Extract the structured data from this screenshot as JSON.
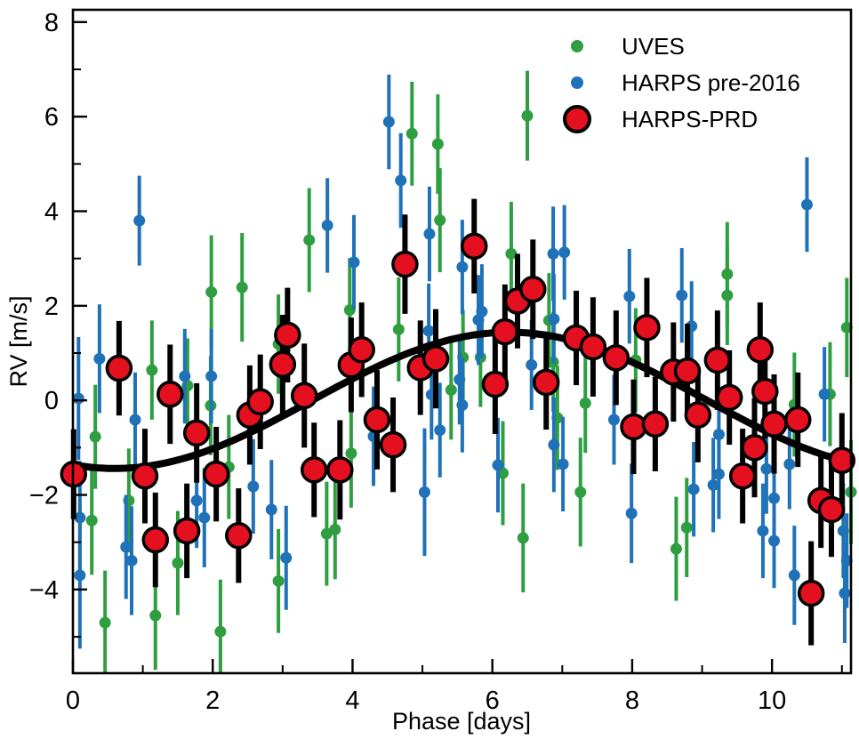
{
  "figure": {
    "background": "#ffffff",
    "frame_color": "#000000"
  },
  "chart_data": {
    "type": "scatter",
    "title": "",
    "xlabel": "Phase [days]",
    "ylabel": "RV [m/s]",
    "grid": false,
    "legend_position": "top-right",
    "axes": {
      "x": {
        "label": "Phase [days]",
        "range": [
          0,
          11.13
        ],
        "major_ticks": [
          0,
          2,
          4,
          6,
          8,
          10
        ],
        "major_tick_labels": [
          "0",
          "2",
          "4",
          "6",
          "8",
          "10"
        ],
        "minor_ticks": [
          1,
          3,
          5,
          7,
          9,
          11
        ],
        "ticks_direction": "in"
      },
      "y": {
        "label": "RV [m/s]",
        "range": [
          -5.77,
          8.26
        ],
        "major_ticks": [
          -4,
          -2,
          0,
          2,
          4,
          6,
          8
        ],
        "major_tick_labels": [
          "−4",
          "−2",
          "0",
          "2",
          "4",
          "6",
          "8"
        ],
        "minor_ticks": [
          -5,
          -3,
          -1,
          1,
          3,
          5,
          7
        ],
        "ticks_direction": "in"
      }
    },
    "model_curve": {
      "shape": "sine",
      "amplitude": 1.44,
      "period_days": 11.3,
      "rising_zero_crossing_phase": 3.42,
      "color": "#000000",
      "line_width": 8
    },
    "series": [
      {
        "name": "UVES",
        "color": "#2f9e41",
        "marker": "dot",
        "marker_radius": 6.5,
        "errorbar_color": "#2f9e41",
        "errorbar_width": 4,
        "points_format": [
          "phase_days",
          "rv_ms",
          "error_ms"
        ],
        "points": [
          [
            0.27,
            -2.54,
            1.15
          ],
          [
            0.32,
            -0.77,
            1.1
          ],
          [
            0.46,
            -4.7,
            1.1
          ],
          [
            0.8,
            -2.12,
            1.1
          ],
          [
            1.13,
            0.64,
            1.05
          ],
          [
            1.18,
            -4.55,
            1.15
          ],
          [
            1.5,
            -3.44,
            1.1
          ],
          [
            1.64,
            0.31,
            1.0
          ],
          [
            1.97,
            -0.11,
            1.05
          ],
          [
            1.98,
            2.29,
            1.2
          ],
          [
            2.11,
            -4.89,
            1.1
          ],
          [
            2.23,
            -1.41,
            1.1
          ],
          [
            2.42,
            2.39,
            1.15
          ],
          [
            2.94,
            -3.82,
            1.1
          ],
          [
            2.94,
            1.19,
            1.05
          ],
          [
            3.38,
            3.39,
            1.1
          ],
          [
            3.63,
            -2.82,
            1.1
          ],
          [
            3.75,
            -2.73,
            1.05
          ],
          [
            3.96,
            1.91,
            1.1
          ],
          [
            3.98,
            -1.12,
            1.15
          ],
          [
            4.66,
            1.5,
            1.1
          ],
          [
            4.85,
            5.64,
            1.1
          ],
          [
            5.22,
            5.42,
            1.05
          ],
          [
            5.25,
            3.81,
            1.1
          ],
          [
            5.41,
            0.22,
            1.05
          ],
          [
            5.58,
            0.91,
            1.0
          ],
          [
            5.83,
            0.91,
            1.05
          ],
          [
            6.15,
            -1.54,
            1.1
          ],
          [
            6.27,
            3.1,
            1.1
          ],
          [
            6.44,
            -2.91,
            1.15
          ],
          [
            6.5,
            6.02,
            0.95
          ],
          [
            6.81,
            1.69,
            1.0
          ],
          [
            6.87,
            0.81,
            1.05
          ],
          [
            6.93,
            -0.37,
            1.1
          ],
          [
            7.26,
            -1.94,
            1.15
          ],
          [
            7.33,
            -0.06,
            1.05
          ],
          [
            8.05,
            0.85,
            1.1
          ],
          [
            8.63,
            -3.14,
            1.1
          ],
          [
            8.78,
            -2.69,
            1.05
          ],
          [
            9.36,
            2.67,
            1.1
          ],
          [
            9.36,
            2.22,
            1.05
          ],
          [
            10.32,
            -0.09,
            1.1
          ],
          [
            10.83,
            0.13,
            1.1
          ],
          [
            11.07,
            1.54,
            1.05
          ],
          [
            11.13,
            -1.94,
            1.1
          ]
        ]
      },
      {
        "name": "HARPS pre-2016",
        "color": "#1f72b8",
        "marker": "dot",
        "marker_radius": 6.5,
        "errorbar_color": "#1f72b8",
        "errorbar_width": 4,
        "points_format": [
          "phase_days",
          "rv_ms",
          "error_ms"
        ],
        "points": [
          [
            0.08,
            0.04,
            1.3
          ],
          [
            0.1,
            -2.48,
            1.2
          ],
          [
            0.1,
            -3.7,
            1.55
          ],
          [
            0.38,
            0.88,
            1.15
          ],
          [
            0.76,
            -3.1,
            1.1
          ],
          [
            0.84,
            -3.39,
            1.15
          ],
          [
            0.89,
            -0.41,
            1.0
          ],
          [
            0.95,
            3.8,
            0.95
          ],
          [
            1.6,
            0.51,
            1.0
          ],
          [
            1.77,
            -2.12,
            1.0
          ],
          [
            1.88,
            -2.48,
            1.05
          ],
          [
            1.98,
            0.51,
            1.0
          ],
          [
            2.58,
            -1.82,
            1.0
          ],
          [
            2.84,
            -2.31,
            1.05
          ],
          [
            3.05,
            -3.33,
            1.1
          ],
          [
            3.64,
            3.7,
            1.0
          ],
          [
            4.02,
            2.92,
            1.0
          ],
          [
            4.3,
            -0.76,
            1.05
          ],
          [
            4.52,
            5.89,
            1.0
          ],
          [
            4.69,
            4.65,
            1.0
          ],
          [
            5.03,
            -1.94,
            1.35
          ],
          [
            5.09,
            1.47,
            1.0
          ],
          [
            5.1,
            3.52,
            1.0
          ],
          [
            5.13,
            0.12,
            0.95
          ],
          [
            5.25,
            -0.63,
            1.0
          ],
          [
            5.53,
            0.44,
            0.95
          ],
          [
            5.57,
            2.82,
            1.0
          ],
          [
            5.57,
            -0.1,
            1.0
          ],
          [
            5.8,
            1.7,
            0.95
          ],
          [
            5.85,
            1.88,
            1.0
          ],
          [
            6.08,
            -1.37,
            1.0
          ],
          [
            6.56,
            0.75,
            0.95
          ],
          [
            6.87,
            3.1,
            1.0
          ],
          [
            6.88,
            1.72,
            0.95
          ],
          [
            6.88,
            -0.94,
            1.0
          ],
          [
            7.01,
            -1.35,
            1.0
          ],
          [
            7.03,
            3.13,
            1.0
          ],
          [
            7.74,
            -0.41,
            0.95
          ],
          [
            7.96,
            2.2,
            1.0
          ],
          [
            7.99,
            -2.39,
            1.05
          ],
          [
            8.71,
            2.22,
            1.0
          ],
          [
            8.85,
            1.57,
            0.95
          ],
          [
            8.88,
            -1.88,
            1.0
          ],
          [
            9.16,
            -1.79,
            1.0
          ],
          [
            9.24,
            -1.56,
            0.95
          ],
          [
            9.24,
            -0.72,
            1.0
          ],
          [
            9.87,
            -2.76,
            1.0
          ],
          [
            9.92,
            -1.45,
            0.95
          ],
          [
            10.03,
            -2.07,
            1.0
          ],
          [
            10.03,
            -2.97,
            1.0
          ],
          [
            10.25,
            -1.35,
            0.95
          ],
          [
            10.32,
            -3.7,
            1.05
          ],
          [
            10.5,
            4.14,
            1.0
          ],
          [
            10.75,
            0.13,
            1.0
          ],
          [
            11.02,
            -2.76,
            1.0
          ],
          [
            11.04,
            -4.08,
            1.05
          ],
          [
            11.07,
            -3.39,
            1.0
          ]
        ]
      },
      {
        "name": "HARPS-PRD",
        "color": "#e4101f",
        "edge_color": "#000000",
        "marker": "big-circle",
        "marker_radius": 13.5,
        "marker_edge_width": 3.5,
        "errorbar_color": "#000000",
        "errorbar_width": 6,
        "points_format": [
          "phase_days",
          "rv_ms",
          "error_ms"
        ],
        "points": [
          [
            0.01,
            -1.56,
            0.95
          ],
          [
            0.66,
            0.68,
            1.0
          ],
          [
            1.03,
            -1.6,
            1.0
          ],
          [
            1.18,
            -2.95,
            1.0
          ],
          [
            1.39,
            0.13,
            1.05
          ],
          [
            1.63,
            -2.76,
            1.0
          ],
          [
            1.77,
            -0.69,
            1.05
          ],
          [
            2.05,
            -1.56,
            1.0
          ],
          [
            2.37,
            -2.86,
            1.0
          ],
          [
            2.53,
            -0.31,
            1.05
          ],
          [
            2.68,
            -0.03,
            1.0
          ],
          [
            3.0,
            0.76,
            1.05
          ],
          [
            3.07,
            1.38,
            1.0
          ],
          [
            3.31,
            0.1,
            1.1
          ],
          [
            3.45,
            -1.47,
            1.0
          ],
          [
            3.82,
            -1.47,
            1.05
          ],
          [
            3.98,
            0.75,
            1.0
          ],
          [
            4.13,
            1.07,
            1.0
          ],
          [
            4.35,
            -0.41,
            1.05
          ],
          [
            4.58,
            -0.94,
            1.0
          ],
          [
            4.75,
            2.88,
            1.05
          ],
          [
            4.97,
            0.69,
            1.0
          ],
          [
            5.19,
            0.88,
            1.05
          ],
          [
            5.74,
            3.26,
            1.0
          ],
          [
            6.04,
            0.34,
            1.05
          ],
          [
            6.18,
            1.45,
            1.0
          ],
          [
            6.36,
            2.1,
            1.0
          ],
          [
            6.58,
            2.35,
            1.05
          ],
          [
            6.77,
            0.38,
            1.0
          ],
          [
            7.2,
            1.32,
            1.0
          ],
          [
            7.44,
            1.13,
            1.05
          ],
          [
            7.77,
            0.9,
            1.0
          ],
          [
            8.02,
            -0.56,
            1.0
          ],
          [
            8.21,
            1.54,
            1.05
          ],
          [
            8.33,
            -0.5,
            1.0
          ],
          [
            8.59,
            0.6,
            1.05
          ],
          [
            8.79,
            0.62,
            1.0
          ],
          [
            8.94,
            -0.31,
            1.0
          ],
          [
            9.22,
            0.85,
            1.05
          ],
          [
            9.39,
            0.06,
            1.0
          ],
          [
            9.58,
            -1.6,
            1.0
          ],
          [
            9.75,
            -1.0,
            1.05
          ],
          [
            9.83,
            1.07,
            1.0
          ],
          [
            9.9,
            0.19,
            1.0
          ],
          [
            10.03,
            -0.5,
            1.05
          ],
          [
            10.37,
            -0.41,
            1.0
          ],
          [
            10.56,
            -4.08,
            1.1
          ],
          [
            10.7,
            -2.12,
            1.0
          ],
          [
            10.85,
            -2.31,
            1.0
          ],
          [
            11.0,
            -1.27,
            1.0
          ]
        ]
      }
    ],
    "legend": {
      "entries": [
        {
          "label": "UVES",
          "series_index": 0
        },
        {
          "label": "HARPS pre-2016",
          "series_index": 1
        },
        {
          "label": "HARPS-PRD",
          "series_index": 2
        }
      ]
    }
  }
}
